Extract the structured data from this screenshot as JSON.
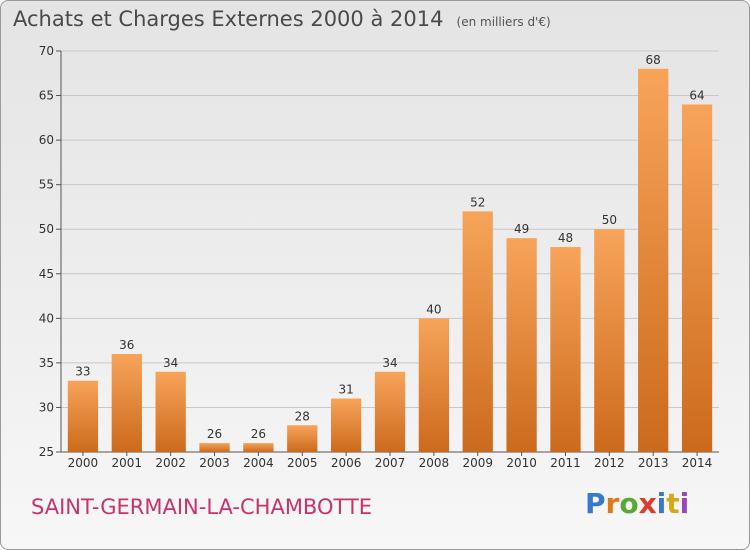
{
  "title": "Achats et Charges Externes 2000 à 2014",
  "subtitle": "(en milliers d'€)",
  "commune": "SAINT-GERMAIN-LA-CHAMBOTTE",
  "logo": {
    "text": "Proxiti",
    "letter_colors": [
      "#3a78c8",
      "#e07818",
      "#5aa836",
      "#e03a2a",
      "#3a78c8",
      "#d8a818",
      "#9a48b8"
    ]
  },
  "colors": {
    "bar_light": "#f7a45a",
    "bar_dark": "#cc6a1c",
    "commune_text": "#c8326e"
  },
  "chart_data": {
    "type": "bar",
    "categories": [
      "2000",
      "2001",
      "2002",
      "2003",
      "2004",
      "2005",
      "2006",
      "2007",
      "2008",
      "2009",
      "2010",
      "2011",
      "2012",
      "2013",
      "2014"
    ],
    "values": [
      33,
      36,
      34,
      26,
      26,
      28,
      31,
      34,
      40,
      52,
      49,
      48,
      50,
      68,
      64
    ],
    "ylim": [
      25,
      70
    ],
    "yticks": [
      25,
      30,
      35,
      40,
      45,
      50,
      55,
      60,
      65,
      70
    ],
    "grid": true,
    "xlabel": "",
    "ylabel": ""
  }
}
